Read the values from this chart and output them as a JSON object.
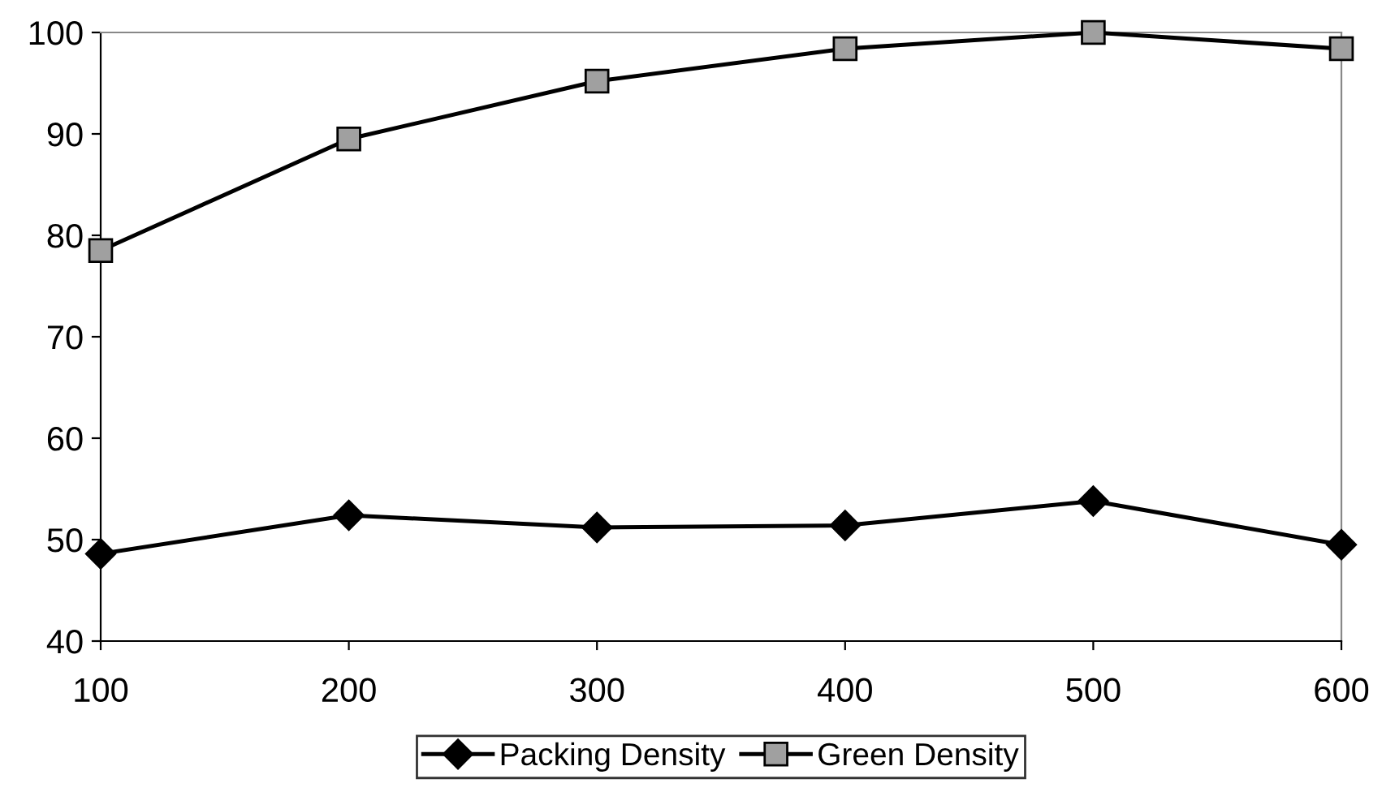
{
  "chart_data": {
    "type": "line",
    "x": [
      100,
      200,
      300,
      400,
      500,
      600
    ],
    "series": [
      {
        "name": "Packing Density",
        "color": "#000000",
        "marker": "diamond",
        "values": [
          48.6,
          52.4,
          51.2,
          51.4,
          53.8,
          49.5
        ]
      },
      {
        "name": "Green Density",
        "color": "#000000",
        "marker": "square",
        "values": [
          78.5,
          89.5,
          95.2,
          98.4,
          100,
          98.4
        ]
      }
    ],
    "xlim": [
      100,
      600
    ],
    "xticks": [
      100,
      200,
      300,
      400,
      500,
      600
    ],
    "ylim": [
      40,
      100
    ],
    "yticks": [
      40,
      50,
      60,
      70,
      80,
      90,
      100
    ],
    "grid": false,
    "legend": "bottom",
    "line_style": "solid"
  }
}
